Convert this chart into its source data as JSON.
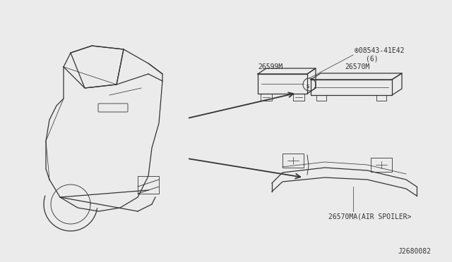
{
  "bg_color": "#ebebeb",
  "car_color": "#333333",
  "diagram_id": "J2680082",
  "part_label_top1": "26599M",
  "part_label_top2": "26570M",
  "screw_label1": "®08543-41E42",
  "screw_label2": "(6)",
  "part_label_bottom": "26570MA(AIR SPOILER>",
  "fig_w": 6.4,
  "fig_h": 3.72,
  "dpi": 100
}
